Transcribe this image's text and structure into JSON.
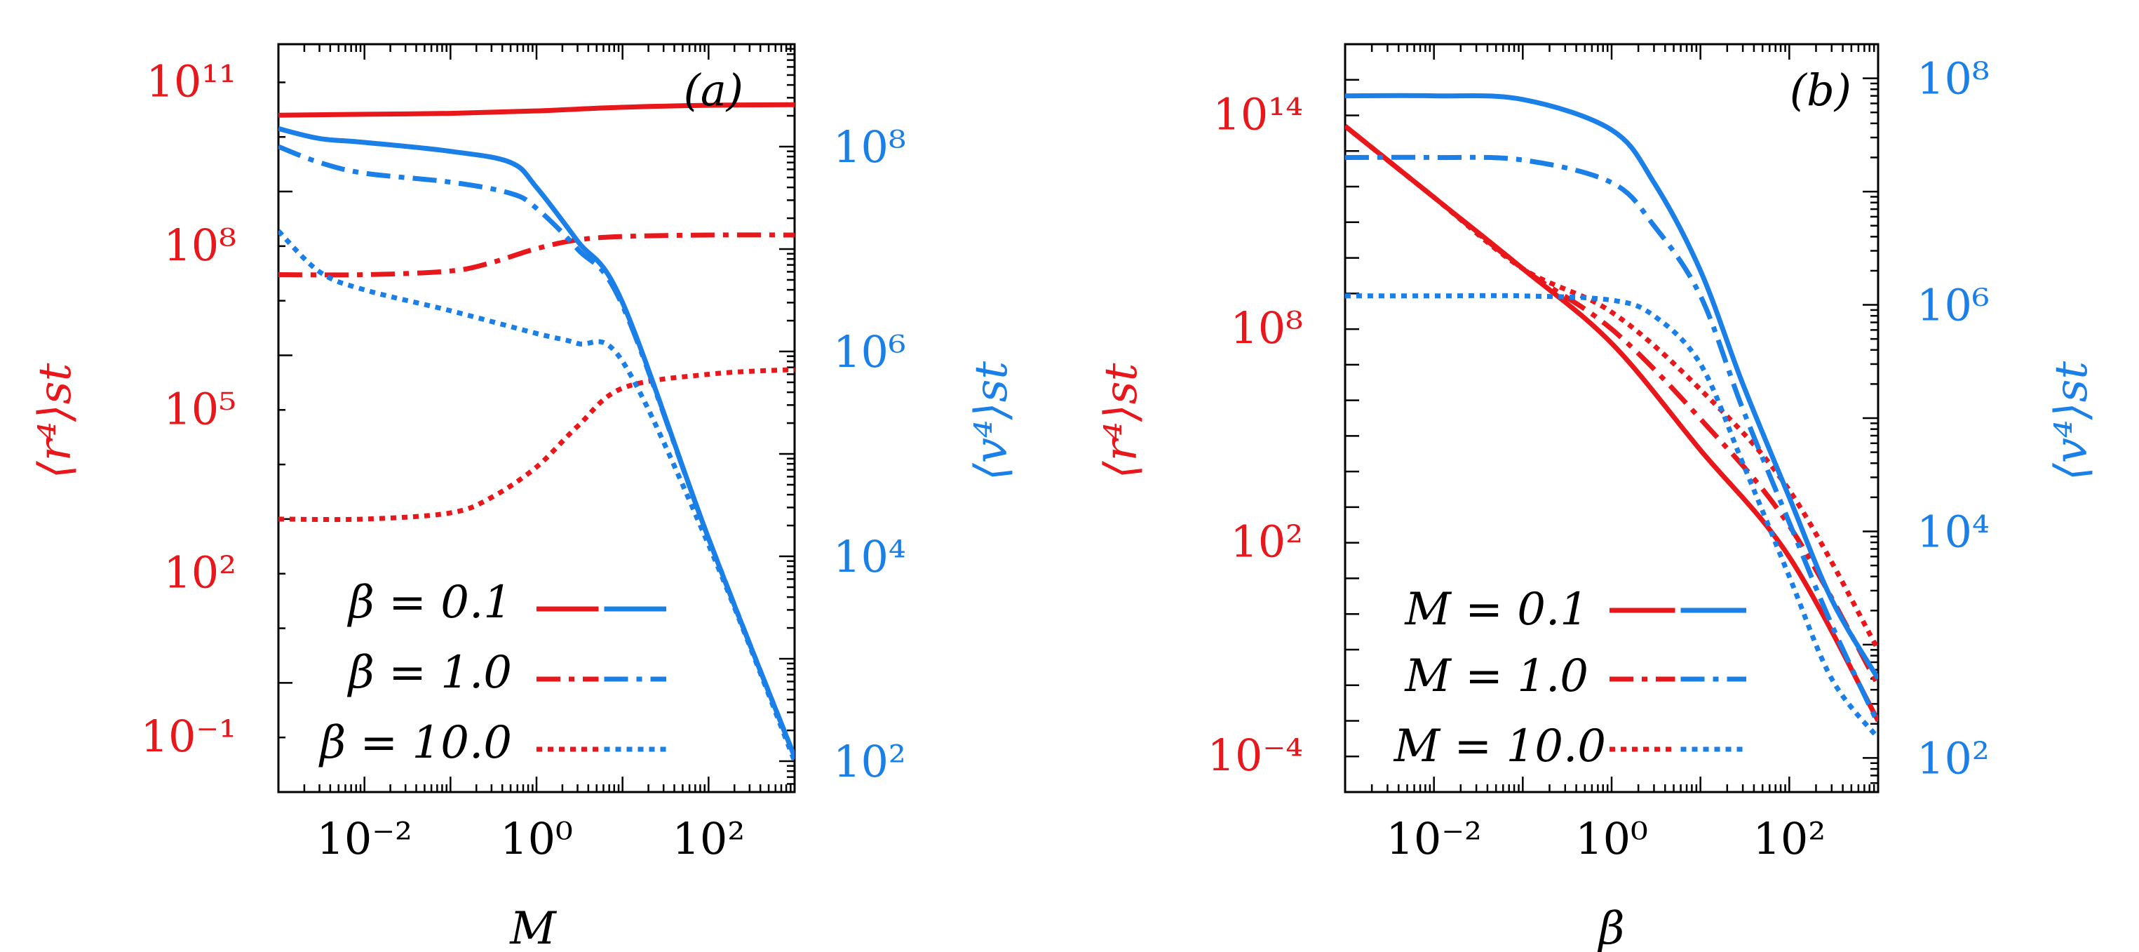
{
  "colors": {
    "r4": "#e8171b",
    "v4": "#1a7fe6"
  },
  "chart_data": [
    {
      "type": "line",
      "panel_label": "(a)",
      "xlabel": "M",
      "ylabel_left": "⟨r⁴⟩st",
      "ylabel_right": "⟨v⁴⟩st",
      "x_scale": "log",
      "y_left_scale": "log",
      "y_right_scale": "log",
      "xlim": [
        0.001,
        1000
      ],
      "ylim_left": [
        0.01,
        500000000000.0
      ],
      "ylim_right": [
        50,
        1000000000.0
      ],
      "x_ticks": [
        {
          "v": 0.01,
          "label": "10⁻²"
        },
        {
          "v": 1,
          "label": "10⁰"
        },
        {
          "v": 100,
          "label": "10²"
        }
      ],
      "y_left_ticks": [
        {
          "v": 0.1,
          "label": "10⁻¹"
        },
        {
          "v": 100,
          "label": "10²"
        },
        {
          "v": 100000,
          "label": "10⁵"
        },
        {
          "v": 100000000,
          "label": "10⁸"
        },
        {
          "v": 100000000000,
          "label": "10¹¹"
        }
      ],
      "y_right_ticks": [
        {
          "v": 100,
          "label": "10²"
        },
        {
          "v": 10000,
          "label": "10⁴"
        },
        {
          "v": 1000000,
          "label": "10⁶"
        },
        {
          "v": 100000000,
          "label": "10⁸"
        }
      ],
      "legend": [
        {
          "label": "β = 0.1",
          "style": "solid"
        },
        {
          "label": "β = 1.0",
          "style": "dashdot"
        },
        {
          "label": "β = 10.0",
          "style": "dotted"
        }
      ],
      "series": [
        {
          "axis": "left",
          "style": "solid",
          "x": [
            0.001,
            0.01,
            0.1,
            1,
            10,
            100,
            1000
          ],
          "y": [
            25000000000.0,
            26000000000.0,
            27000000000.0,
            30000000000.0,
            35000000000.0,
            38000000000.0,
            39000000000.0
          ]
        },
        {
          "axis": "left",
          "style": "dashdot",
          "x": [
            0.001,
            0.01,
            0.1,
            0.3,
            1,
            3,
            10,
            100,
            1000
          ],
          "y": [
            30000000.0,
            30000000.0,
            35000000.0,
            50000000.0,
            90000000.0,
            130000000.0,
            150000000.0,
            160000000.0,
            160000000.0
          ]
        },
        {
          "axis": "left",
          "style": "dotted",
          "x": [
            0.001,
            0.01,
            0.1,
            0.3,
            1,
            3,
            10,
            100,
            1000
          ],
          "y": [
            1000,
            1000,
            1300,
            2500,
            9000,
            50000,
            250000,
            450000,
            550000
          ]
        },
        {
          "axis": "right",
          "style": "solid",
          "x": [
            0.001,
            0.003,
            0.01,
            0.1,
            0.5,
            1,
            3,
            10,
            100,
            1000
          ],
          "y": [
            150000000.0,
            120000000.0,
            110000000.0,
            90000000.0,
            70000000.0,
            40000000.0,
            12000000.0,
            3000000.0,
            15000.0,
            110
          ]
        },
        {
          "axis": "right",
          "style": "dashdot",
          "x": [
            0.001,
            0.003,
            0.01,
            0.1,
            0.5,
            1,
            3,
            10,
            100,
            1000
          ],
          "y": [
            100000000.0,
            70000000.0,
            55000000.0,
            45000000.0,
            35000000.0,
            25000000.0,
            10000000.0,
            2800000.0,
            15000.0,
            110
          ]
        },
        {
          "axis": "right",
          "style": "dotted",
          "x": [
            0.001,
            0.003,
            0.01,
            0.1,
            1,
            3,
            10,
            100,
            1000
          ],
          "y": [
            15000000.0,
            6000000.0,
            4000000.0,
            2500000.0,
            1500000.0,
            1200000.0,
            800000.0,
            13000.0,
            100
          ]
        }
      ]
    },
    {
      "type": "line",
      "panel_label": "(b)",
      "xlabel": "β",
      "ylabel_left": "⟨r⁴⟩st",
      "ylabel_right": "⟨v⁴⟩st",
      "x_scale": "log",
      "y_left_scale": "log",
      "y_right_scale": "log",
      "xlim": [
        0.001,
        1000
      ],
      "ylim_left": [
        1e-05,
        1e+16
      ],
      "ylim_right": [
        50,
        200000000.0
      ],
      "x_ticks": [
        {
          "v": 0.01,
          "label": "10⁻²"
        },
        {
          "v": 1,
          "label": "10⁰"
        },
        {
          "v": 100,
          "label": "10²"
        }
      ],
      "y_left_ticks": [
        {
          "v": 0.0001,
          "label": "10⁻⁴"
        },
        {
          "v": 100,
          "label": "10²"
        },
        {
          "v": 100000000,
          "label": "10⁸"
        },
        {
          "v": 100000000000000,
          "label": "10¹⁴"
        }
      ],
      "y_right_ticks": [
        {
          "v": 100,
          "label": "10²"
        },
        {
          "v": 10000,
          "label": "10⁴"
        },
        {
          "v": 1000000,
          "label": "10⁶"
        },
        {
          "v": 100000000,
          "label": "10⁸"
        }
      ],
      "legend": [
        {
          "label": "M = 0.1",
          "style": "solid"
        },
        {
          "label": "M = 1.0",
          "style": "dashdot"
        },
        {
          "label": "M = 10.0",
          "style": "dotted"
        }
      ],
      "series": [
        {
          "axis": "left",
          "style": "solid",
          "x": [
            0.001,
            0.01,
            0.1,
            1,
            10,
            100,
            1000
          ],
          "y": [
            50000000000000.0,
            500000000000.0,
            5000000000.0,
            40000000.0,
            40000.0,
            40,
            0.001
          ]
        },
        {
          "axis": "left",
          "style": "dashdot",
          "x": [
            0.001,
            0.01,
            0.1,
            1,
            10,
            100,
            1000
          ],
          "y": [
            50000000000000.0,
            500000000000.0,
            5000000000.0,
            100000000.0,
            300000.0,
            300,
            0.01
          ]
        },
        {
          "axis": "left",
          "style": "dotted",
          "x": [
            0.001,
            0.01,
            0.1,
            1,
            10,
            100,
            1000
          ],
          "y": [
            50000000000000.0,
            500000000000.0,
            5000000000.0,
            300000000.0,
            2000000.0,
            3000,
            0.1
          ]
        },
        {
          "axis": "right",
          "style": "solid",
          "x": [
            0.001,
            0.01,
            0.1,
            1,
            3,
            10,
            30,
            100,
            300,
            1000
          ],
          "y": [
            70000000.0,
            70000000.0,
            65000000.0,
            35000000.0,
            12000000.0,
            2000000.0,
            200000.0,
            20000.0,
            2500,
            500
          ]
        },
        {
          "axis": "right",
          "style": "dashdot",
          "x": [
            0.001,
            0.01,
            0.1,
            1,
            3,
            10,
            30,
            100,
            300,
            1000
          ],
          "y": [
            20000000.0,
            20000000.0,
            19000000.0,
            12000000.0,
            5000000.0,
            1200000.0,
            120000.0,
            12000.0,
            1500,
            200
          ]
        },
        {
          "axis": "right",
          "style": "dotted",
          "x": [
            0.001,
            0.01,
            0.1,
            1,
            3,
            10,
            30,
            100,
            300,
            1000
          ],
          "y": [
            1200000.0,
            1200000.0,
            1200000.0,
            1100000.0,
            800000.0,
            300000.0,
            40000.0,
            4000,
            500,
            150
          ]
        }
      ]
    }
  ]
}
